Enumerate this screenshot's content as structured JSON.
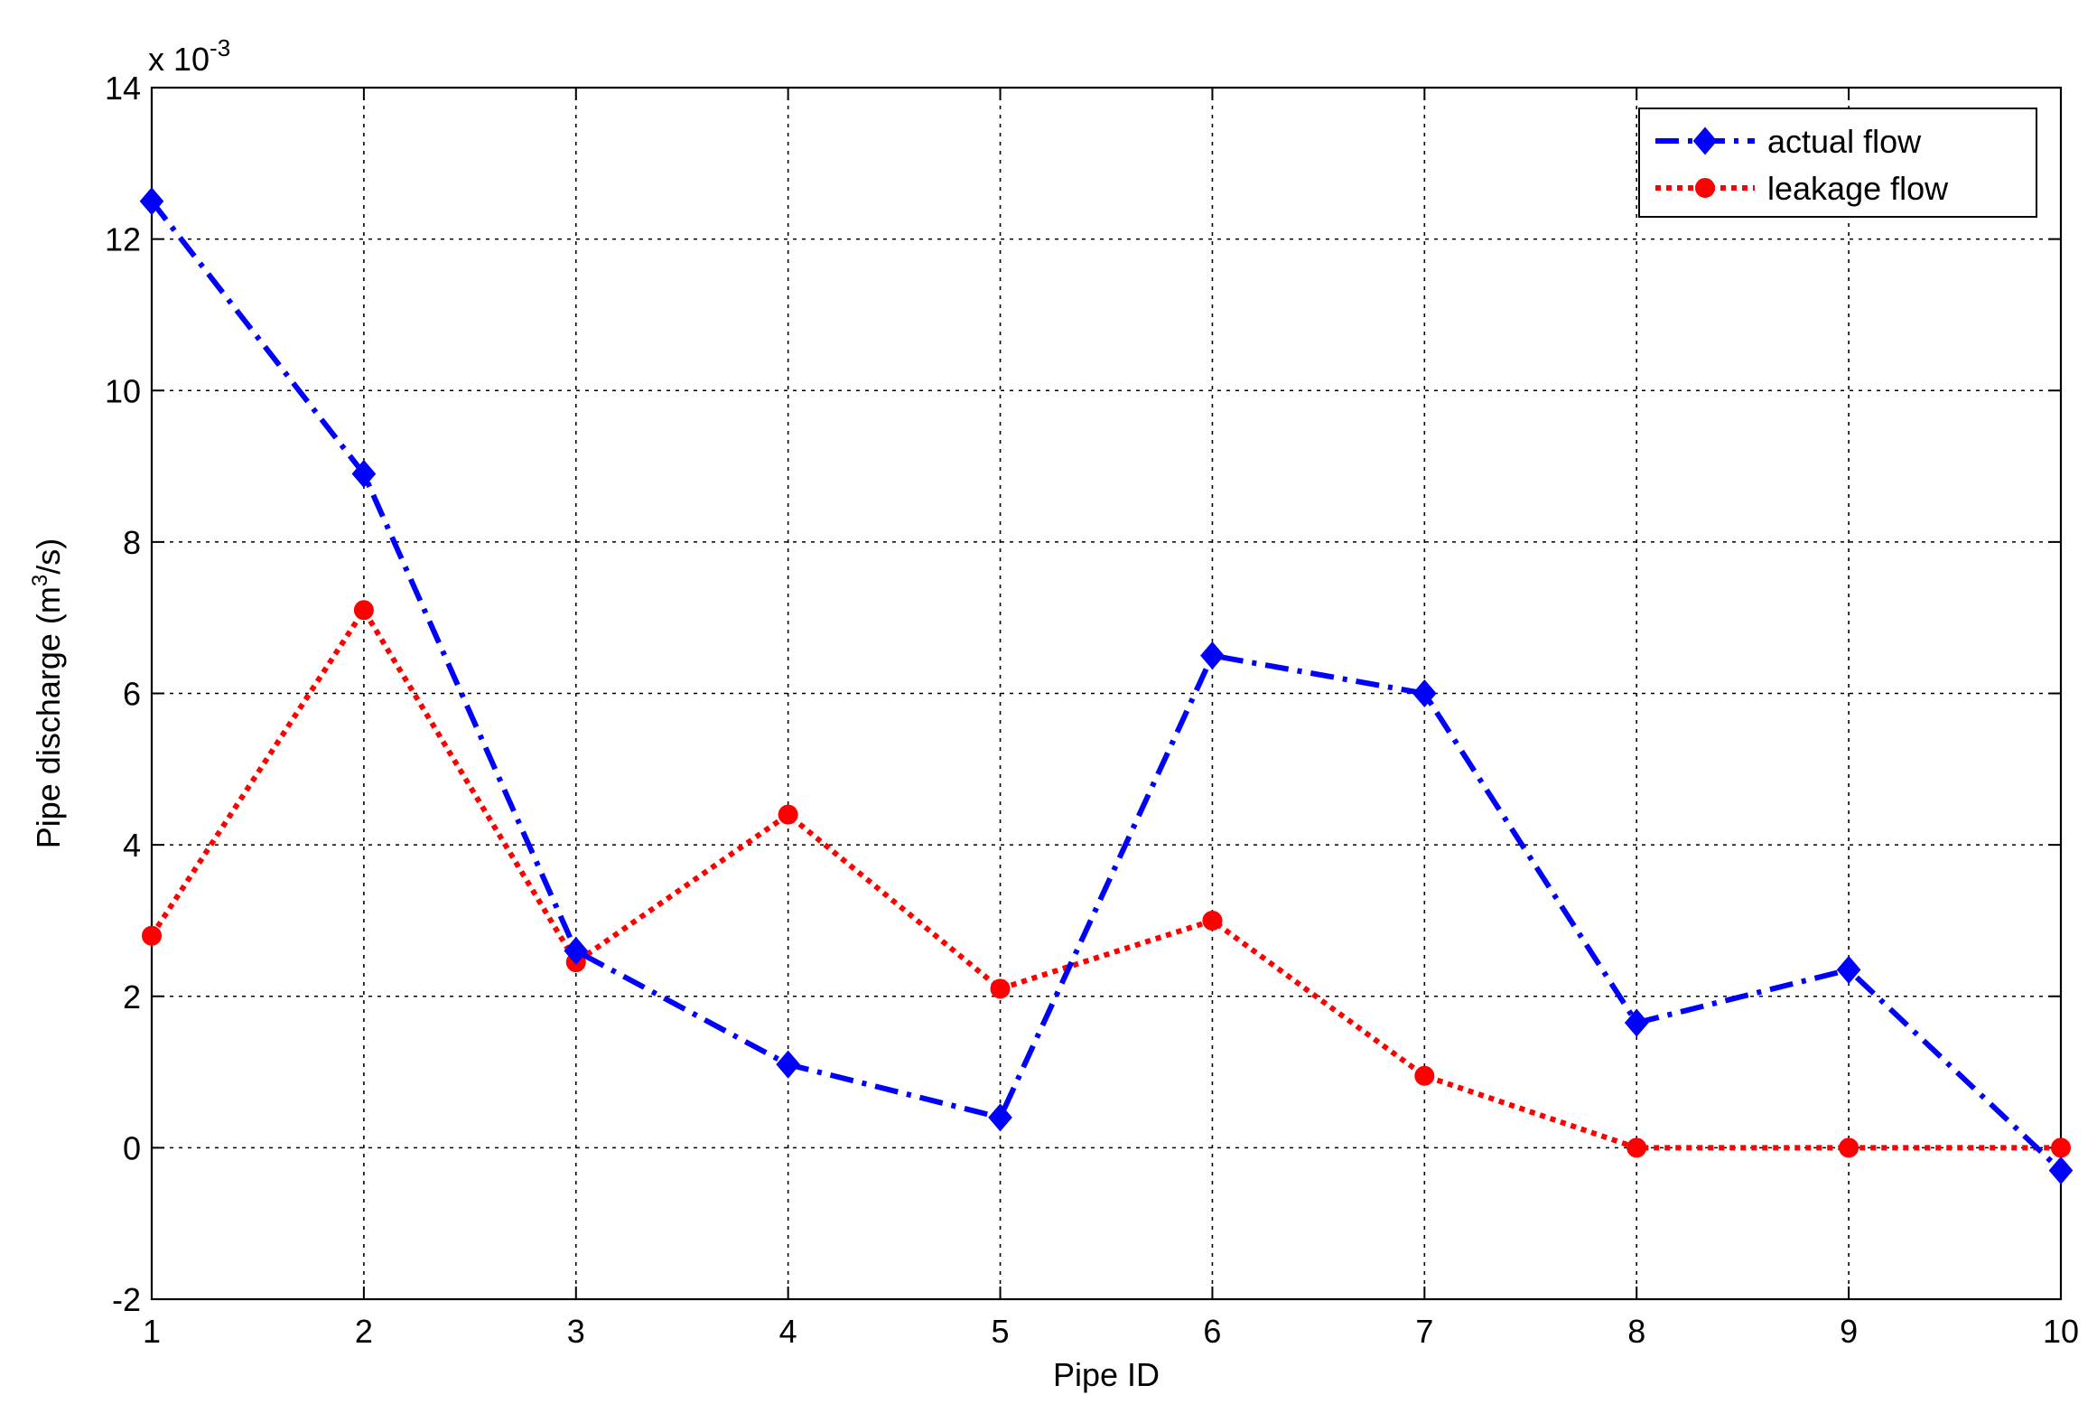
{
  "chart_data": {
    "type": "line",
    "x": [
      1,
      2,
      3,
      4,
      5,
      6,
      7,
      8,
      9,
      10
    ],
    "xlabel": "Pipe ID",
    "ylabel_main": "Pipe discharge (m",
    "ylabel_sup": "3",
    "ylabel_end": "/s)",
    "multiplier_base": "x 10",
    "multiplier_exp": "-3",
    "xlim": [
      1,
      10
    ],
    "ylim": [
      -2,
      14
    ],
    "xticks": [
      1,
      2,
      3,
      4,
      5,
      6,
      7,
      8,
      9,
      10
    ],
    "yticks": [
      -2,
      0,
      2,
      4,
      6,
      8,
      10,
      12,
      14
    ],
    "grid": true,
    "legend_position": "top-right",
    "series": [
      {
        "name": "actual flow",
        "color": "#0000ff",
        "marker": "diamond",
        "line_style": "dash-dot",
        "values": [
          12.5,
          8.9,
          2.6,
          1.1,
          0.4,
          6.5,
          6.0,
          1.65,
          2.35,
          -0.3
        ]
      },
      {
        "name": "leakage flow",
        "color": "#ff0000",
        "marker": "circle",
        "line_style": "dotted",
        "values": [
          2.8,
          7.1,
          2.45,
          4.4,
          2.1,
          3.0,
          0.95,
          0.0,
          0.0,
          0.0
        ]
      }
    ]
  }
}
